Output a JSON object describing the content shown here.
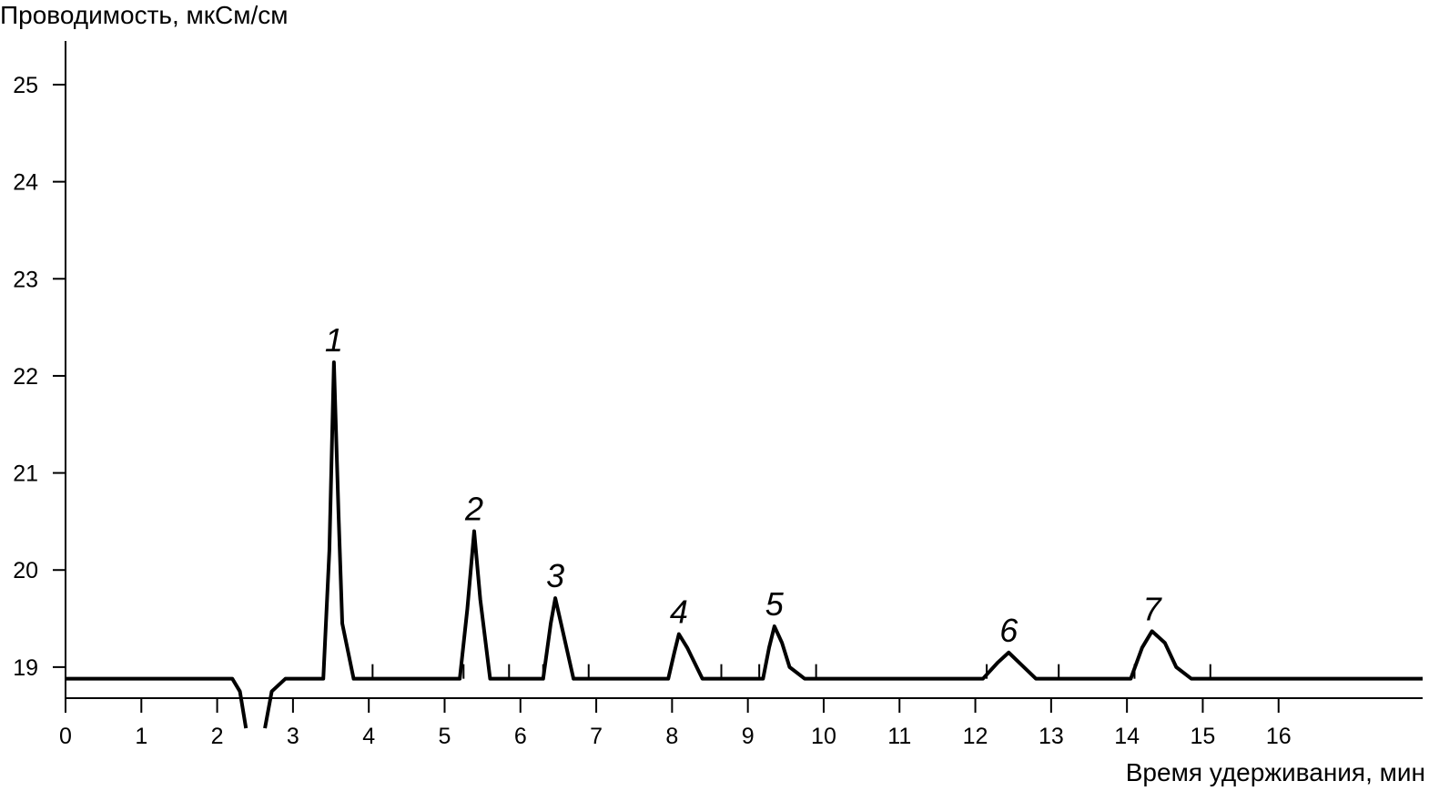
{
  "chart_data": {
    "type": "line",
    "ylabel": "Проводимость, мкСм/см",
    "xlabel": "Время удерживания, мин",
    "xlim": [
      0,
      17.9
    ],
    "ylim": [
      18.68,
      25.45
    ],
    "xticks": [
      0,
      1,
      2,
      3,
      4,
      5,
      6,
      7,
      8,
      9,
      10,
      11,
      12,
      13,
      14,
      15,
      16
    ],
    "yticks": [
      19,
      20,
      21,
      22,
      23,
      24,
      25
    ],
    "series": [
      {
        "color": "#000000",
        "x": [
          0,
          2.2,
          2.3,
          2.38,
          null,
          2.63,
          2.72,
          2.9,
          3.4,
          3.48,
          3.54,
          3.6,
          3.65,
          3.8,
          5.2,
          5.3,
          5.39,
          5.47,
          5.6,
          6.3,
          6.4,
          6.46,
          6.55,
          6.7,
          7.95,
          8.03,
          8.09,
          8.2,
          8.4,
          9.2,
          9.28,
          9.35,
          9.45,
          9.55,
          9.75,
          12.1,
          12.3,
          12.44,
          12.6,
          12.8,
          14.05,
          14.2,
          14.33,
          14.5,
          14.65,
          14.85,
          17.9
        ],
        "values": [
          18.88,
          18.88,
          18.75,
          18.37,
          null,
          18.37,
          18.75,
          18.88,
          18.88,
          20.2,
          22.14,
          20.6,
          19.45,
          18.88,
          18.88,
          19.6,
          20.4,
          19.7,
          18.88,
          18.88,
          19.45,
          19.71,
          19.4,
          18.88,
          18.88,
          19.15,
          19.34,
          19.2,
          18.88,
          18.88,
          19.2,
          19.42,
          19.25,
          19.0,
          18.88,
          18.88,
          19.05,
          19.15,
          19.03,
          18.88,
          18.88,
          19.2,
          19.37,
          19.25,
          19.0,
          18.88,
          18.88
        ]
      }
    ],
    "peak_bounds": [
      3.4,
      4.05,
      5.25,
      5.85,
      6.3,
      6.9,
      8.65,
      9.15,
      9.9,
      12.15,
      13.1,
      14.1,
      15.1
    ],
    "peaks": [
      {
        "label": "1",
        "x": 3.54,
        "y": 22.14
      },
      {
        "label": "2",
        "x": 5.39,
        "y": 20.4
      },
      {
        "label": "3",
        "x": 6.46,
        "y": 19.71
      },
      {
        "label": "4",
        "x": 8.09,
        "y": 19.34
      },
      {
        "label": "5",
        "x": 9.35,
        "y": 19.42
      },
      {
        "label": "6",
        "x": 12.44,
        "y": 19.15
      },
      {
        "label": "7",
        "x": 14.33,
        "y": 19.37
      }
    ]
  }
}
